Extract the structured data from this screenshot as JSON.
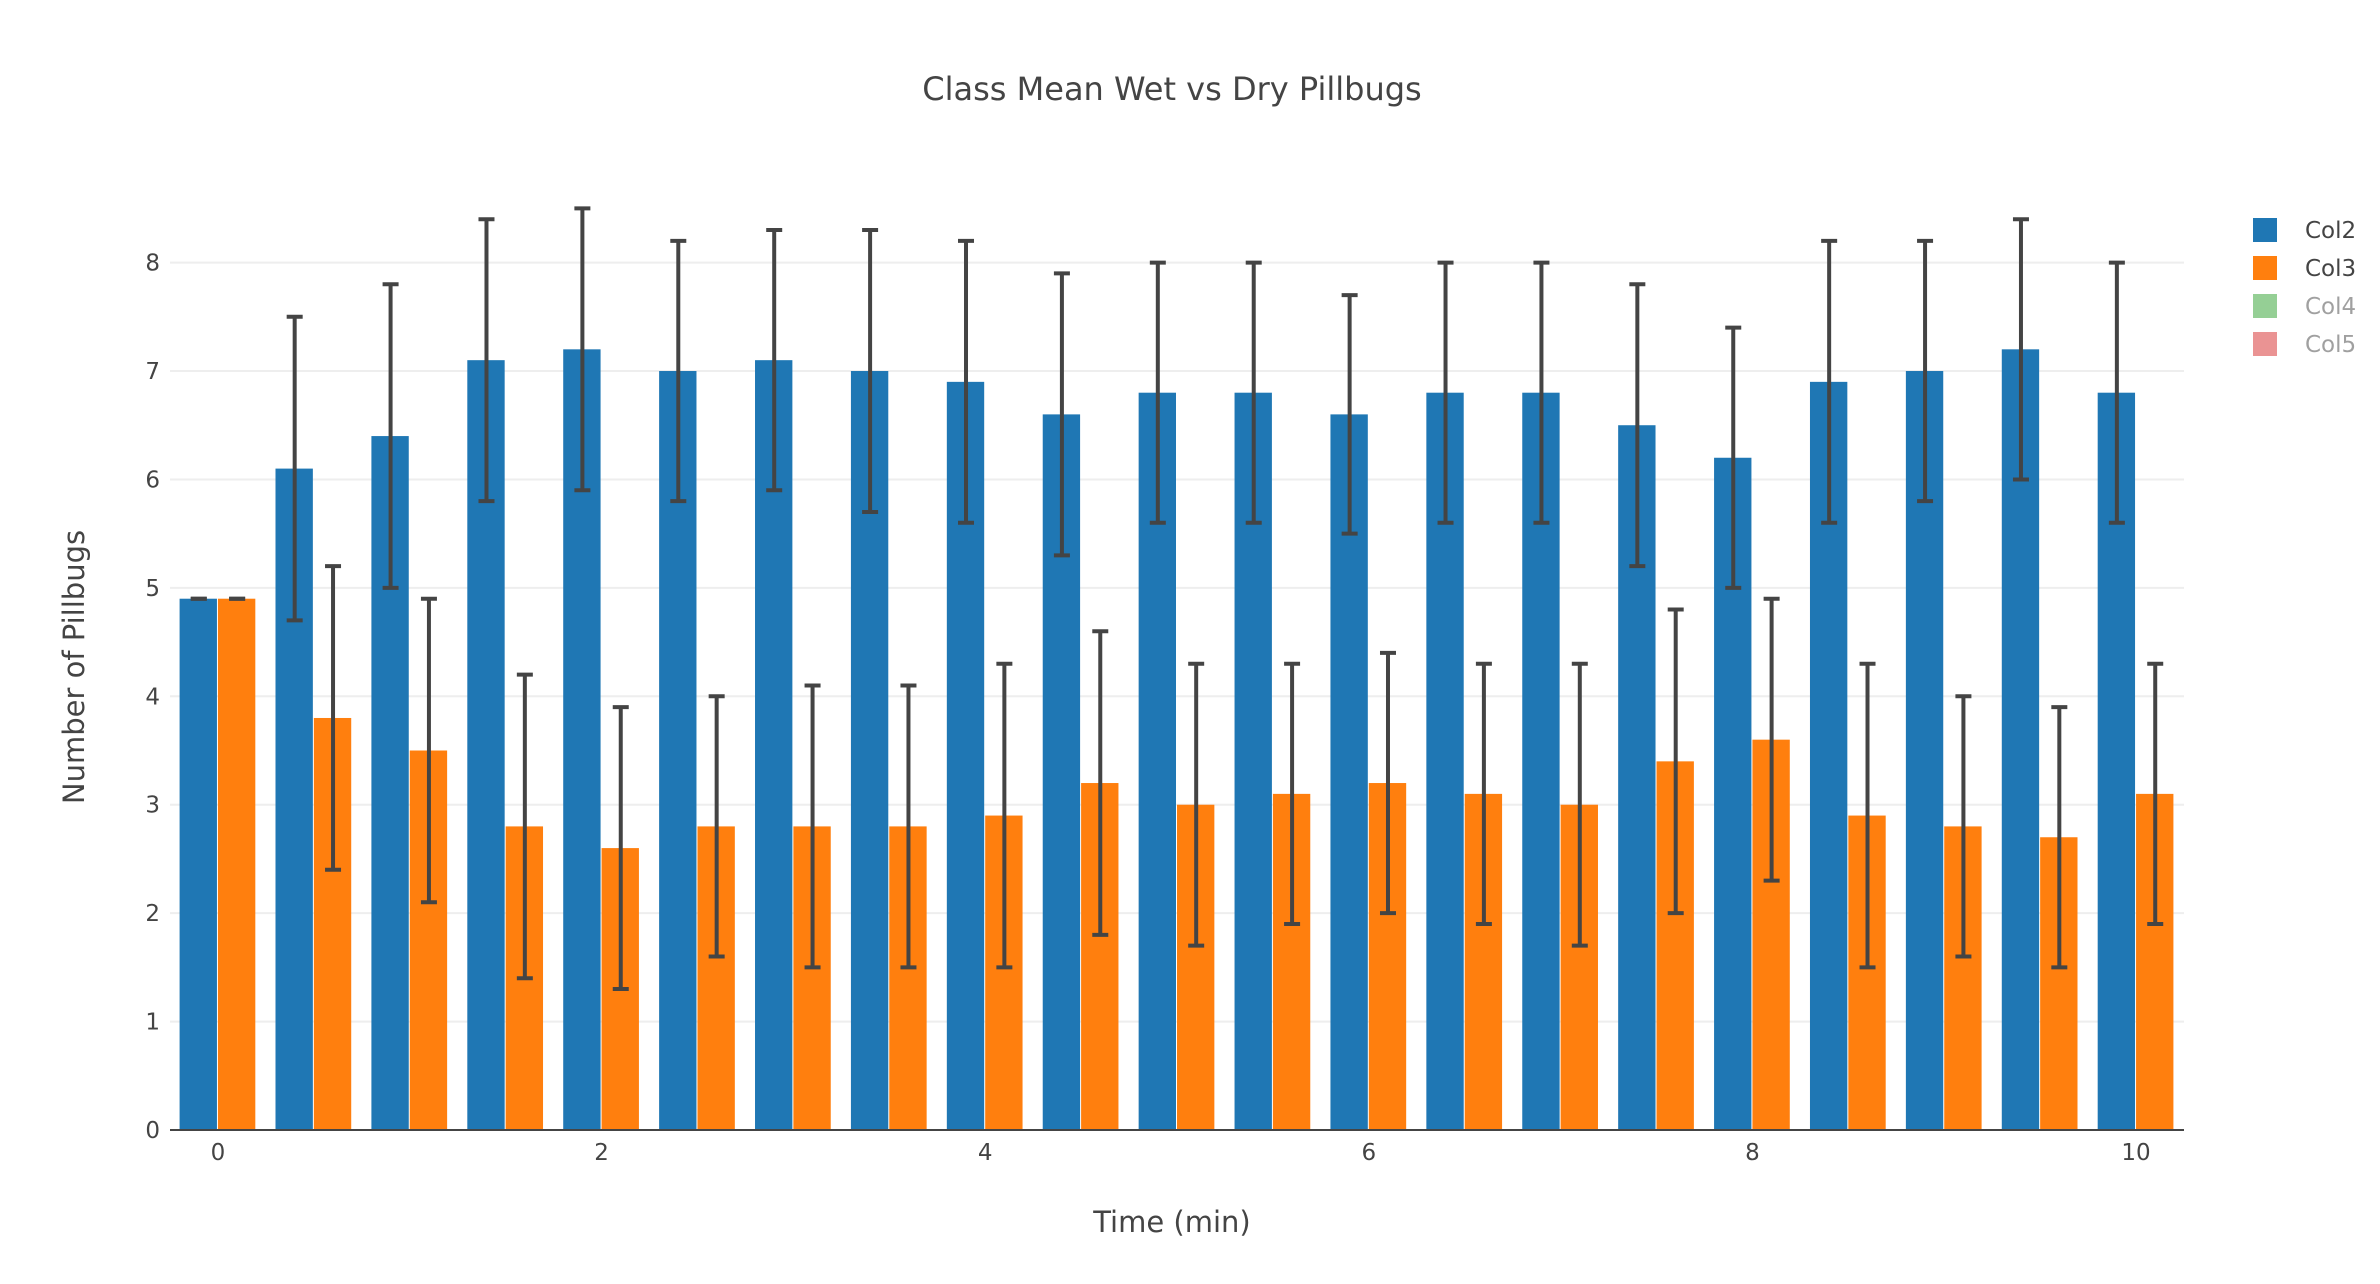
{
  "chart_data": {
    "type": "bar",
    "title": "Class Mean Wet vs Dry Pillbugs",
    "xlabel": "Time (min)",
    "ylabel": "Number of Pillbugs",
    "x": [
      0,
      0.5,
      1,
      1.5,
      2,
      2.5,
      3,
      3.5,
      4,
      4.5,
      5,
      5.5,
      6,
      6.5,
      7,
      7.5,
      8,
      8.5,
      9,
      9.5,
      10
    ],
    "xlim": [
      -0.25,
      10.25
    ],
    "ylim": [
      0,
      8.9
    ],
    "xticks": [
      0,
      2,
      4,
      6,
      8,
      10
    ],
    "yticks": [
      0,
      1,
      2,
      3,
      4,
      5,
      6,
      7,
      8
    ],
    "grid": true,
    "legend_position": "top-right",
    "series": [
      {
        "name": "Col2",
        "color": "#1f77b4",
        "values": [
          4.9,
          6.1,
          6.4,
          7.1,
          7.2,
          7.0,
          7.1,
          7.0,
          6.9,
          6.6,
          6.8,
          6.8,
          6.6,
          6.8,
          6.8,
          6.5,
          6.2,
          6.9,
          7.0,
          7.2,
          6.8
        ],
        "error": [
          0.0,
          1.4,
          1.4,
          1.3,
          1.3,
          1.2,
          1.2,
          1.3,
          1.3,
          1.3,
          1.2,
          1.2,
          1.1,
          1.2,
          1.2,
          1.3,
          1.2,
          1.3,
          1.2,
          1.2,
          1.2
        ]
      },
      {
        "name": "Col3",
        "color": "#ff7f0e",
        "values": [
          4.9,
          3.8,
          3.5,
          2.8,
          2.6,
          2.8,
          2.8,
          2.8,
          2.9,
          3.2,
          3.0,
          3.1,
          3.2,
          3.1,
          3.0,
          3.4,
          3.6,
          2.9,
          2.8,
          2.7,
          3.1
        ],
        "error": [
          0.0,
          1.4,
          1.4,
          1.4,
          1.3,
          1.2,
          1.3,
          1.3,
          1.4,
          1.4,
          1.3,
          1.2,
          1.2,
          1.2,
          1.3,
          1.4,
          1.3,
          1.4,
          1.2,
          1.2,
          1.2
        ]
      }
    ],
    "legend": [
      {
        "name": "Col2",
        "color": "#1f77b4",
        "visible": true
      },
      {
        "name": "Col3",
        "color": "#ff7f0e",
        "visible": true
      },
      {
        "name": "Col4",
        "color": "#2ca02c",
        "visible": false
      },
      {
        "name": "Col5",
        "color": "#d62728",
        "visible": false
      }
    ],
    "error_bar_color": "#444444"
  }
}
